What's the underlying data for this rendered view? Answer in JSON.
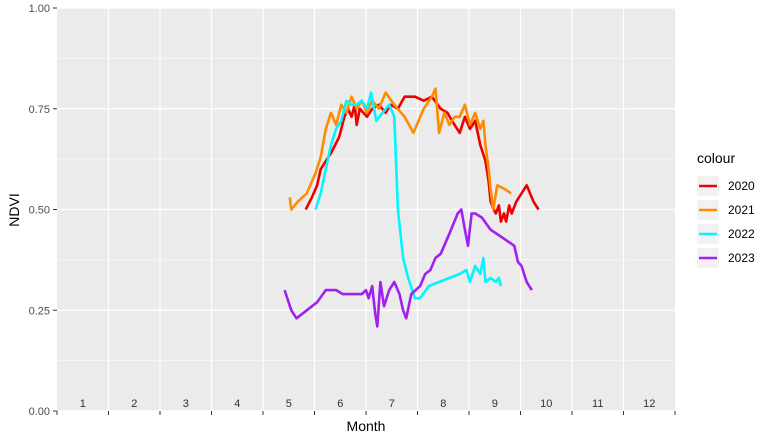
{
  "chart_data": {
    "type": "line",
    "title": "",
    "xlabel": "Month",
    "ylabel": "NDVI",
    "xlim": [
      0.5,
      12.5
    ],
    "ylim": [
      0,
      1
    ],
    "x_ticks": [
      "1",
      "2",
      "3",
      "4",
      "5",
      "6",
      "7",
      "8",
      "9",
      "10",
      "11",
      "12"
    ],
    "y_ticks": [
      "0.00",
      "0.25",
      "0.50",
      "0.75",
      "1.00"
    ],
    "grid": true,
    "legend": {
      "title": "colour",
      "position": "right"
    },
    "series": [
      {
        "name": "2020",
        "color": "#ee0000",
        "points": [
          [
            5.33,
            0.5
          ],
          [
            5.45,
            0.53
          ],
          [
            5.55,
            0.56
          ],
          [
            5.62,
            0.6
          ],
          [
            5.72,
            0.62
          ],
          [
            5.82,
            0.64
          ],
          [
            5.98,
            0.68
          ],
          [
            6.08,
            0.73
          ],
          [
            6.15,
            0.75
          ],
          [
            6.22,
            0.73
          ],
          [
            6.28,
            0.76
          ],
          [
            6.32,
            0.71
          ],
          [
            6.38,
            0.75
          ],
          [
            6.45,
            0.74
          ],
          [
            6.52,
            0.73
          ],
          [
            6.62,
            0.75
          ],
          [
            6.75,
            0.76
          ],
          [
            6.88,
            0.74
          ],
          [
            6.98,
            0.76
          ],
          [
            7.12,
            0.75
          ],
          [
            7.25,
            0.78
          ],
          [
            7.45,
            0.78
          ],
          [
            7.62,
            0.77
          ],
          [
            7.78,
            0.78
          ],
          [
            7.95,
            0.75
          ],
          [
            8.08,
            0.74
          ],
          [
            8.22,
            0.71
          ],
          [
            8.32,
            0.69
          ],
          [
            8.42,
            0.73
          ],
          [
            8.52,
            0.7
          ],
          [
            8.62,
            0.72
          ],
          [
            8.72,
            0.66
          ],
          [
            8.82,
            0.62
          ],
          [
            8.88,
            0.57
          ],
          [
            8.92,
            0.52
          ],
          [
            8.98,
            0.5
          ],
          [
            9.02,
            0.49
          ],
          [
            9.08,
            0.51
          ],
          [
            9.12,
            0.47
          ],
          [
            9.18,
            0.49
          ],
          [
            9.22,
            0.47
          ],
          [
            9.28,
            0.51
          ],
          [
            9.33,
            0.49
          ],
          [
            9.42,
            0.52
          ],
          [
            9.52,
            0.54
          ],
          [
            9.62,
            0.56
          ],
          [
            9.75,
            0.52
          ],
          [
            9.85,
            0.5
          ]
        ]
      },
      {
        "name": "2021",
        "color": "#ff8c00",
        "points": [
          [
            5.02,
            0.53
          ],
          [
            5.05,
            0.5
          ],
          [
            5.18,
            0.52
          ],
          [
            5.35,
            0.54
          ],
          [
            5.52,
            0.59
          ],
          [
            5.62,
            0.63
          ],
          [
            5.72,
            0.7
          ],
          [
            5.82,
            0.74
          ],
          [
            5.92,
            0.71
          ],
          [
            6.02,
            0.76
          ],
          [
            6.12,
            0.74
          ],
          [
            6.22,
            0.78
          ],
          [
            6.32,
            0.75
          ],
          [
            6.42,
            0.77
          ],
          [
            6.52,
            0.74
          ],
          [
            6.62,
            0.77
          ],
          [
            6.75,
            0.75
          ],
          [
            6.88,
            0.79
          ],
          [
            7.05,
            0.76
          ],
          [
            7.25,
            0.73
          ],
          [
            7.42,
            0.69
          ],
          [
            7.62,
            0.75
          ],
          [
            7.78,
            0.78
          ],
          [
            7.85,
            0.8
          ],
          [
            7.92,
            0.69
          ],
          [
            8.02,
            0.74
          ],
          [
            8.12,
            0.71
          ],
          [
            8.22,
            0.73
          ],
          [
            8.32,
            0.73
          ],
          [
            8.42,
            0.76
          ],
          [
            8.52,
            0.71
          ],
          [
            8.62,
            0.74
          ],
          [
            8.72,
            0.7
          ],
          [
            8.78,
            0.72
          ],
          [
            8.82,
            0.66
          ],
          [
            8.88,
            0.6
          ],
          [
            8.92,
            0.55
          ],
          [
            8.97,
            0.5
          ],
          [
            9.05,
            0.56
          ],
          [
            9.2,
            0.55
          ],
          [
            9.32,
            0.54
          ]
        ]
      },
      {
        "name": "2022",
        "color": "#00f5ff",
        "points": [
          [
            5.52,
            0.5
          ],
          [
            5.62,
            0.54
          ],
          [
            5.72,
            0.6
          ],
          [
            5.82,
            0.66
          ],
          [
            5.92,
            0.7
          ],
          [
            6.02,
            0.72
          ],
          [
            6.12,
            0.77
          ],
          [
            6.22,
            0.76
          ],
          [
            6.32,
            0.76
          ],
          [
            6.42,
            0.77
          ],
          [
            6.52,
            0.75
          ],
          [
            6.6,
            0.79
          ],
          [
            6.7,
            0.72
          ],
          [
            6.82,
            0.74
          ],
          [
            6.95,
            0.76
          ],
          [
            7.05,
            0.73
          ],
          [
            7.12,
            0.5
          ],
          [
            7.22,
            0.38
          ],
          [
            7.32,
            0.33
          ],
          [
            7.45,
            0.28
          ],
          [
            7.55,
            0.28
          ],
          [
            7.72,
            0.31
          ],
          [
            7.92,
            0.32
          ],
          [
            8.12,
            0.33
          ],
          [
            8.32,
            0.34
          ],
          [
            8.45,
            0.35
          ],
          [
            8.52,
            0.32
          ],
          [
            8.62,
            0.36
          ],
          [
            8.72,
            0.34
          ],
          [
            8.78,
            0.38
          ],
          [
            8.82,
            0.32
          ],
          [
            8.92,
            0.33
          ],
          [
            9.02,
            0.32
          ],
          [
            9.08,
            0.33
          ],
          [
            9.12,
            0.31
          ]
        ]
      },
      {
        "name": "2023",
        "color": "#a020f0",
        "points": [
          [
            4.92,
            0.3
          ],
          [
            5.05,
            0.25
          ],
          [
            5.15,
            0.23
          ],
          [
            5.35,
            0.25
          ],
          [
            5.55,
            0.27
          ],
          [
            5.72,
            0.3
          ],
          [
            5.92,
            0.3
          ],
          [
            6.05,
            0.29
          ],
          [
            6.15,
            0.29
          ],
          [
            6.25,
            0.29
          ],
          [
            6.32,
            0.29
          ],
          [
            6.42,
            0.29
          ],
          [
            6.5,
            0.3
          ],
          [
            6.55,
            0.28
          ],
          [
            6.62,
            0.31
          ],
          [
            6.68,
            0.24
          ],
          [
            6.72,
            0.21
          ],
          [
            6.78,
            0.32
          ],
          [
            6.85,
            0.26
          ],
          [
            6.95,
            0.3
          ],
          [
            7.05,
            0.32
          ],
          [
            7.15,
            0.29
          ],
          [
            7.22,
            0.25
          ],
          [
            7.28,
            0.23
          ],
          [
            7.38,
            0.29
          ],
          [
            7.55,
            0.31
          ],
          [
            7.65,
            0.34
          ],
          [
            7.75,
            0.35
          ],
          [
            7.85,
            0.38
          ],
          [
            7.95,
            0.39
          ],
          [
            8.12,
            0.44
          ],
          [
            8.28,
            0.49
          ],
          [
            8.35,
            0.5
          ],
          [
            8.42,
            0.45
          ],
          [
            8.48,
            0.41
          ],
          [
            8.55,
            0.49
          ],
          [
            8.62,
            0.49
          ],
          [
            8.75,
            0.48
          ],
          [
            8.92,
            0.45
          ],
          [
            9.15,
            0.43
          ],
          [
            9.38,
            0.41
          ],
          [
            9.45,
            0.37
          ],
          [
            9.52,
            0.36
          ],
          [
            9.62,
            0.32
          ],
          [
            9.72,
            0.3
          ]
        ]
      }
    ]
  }
}
